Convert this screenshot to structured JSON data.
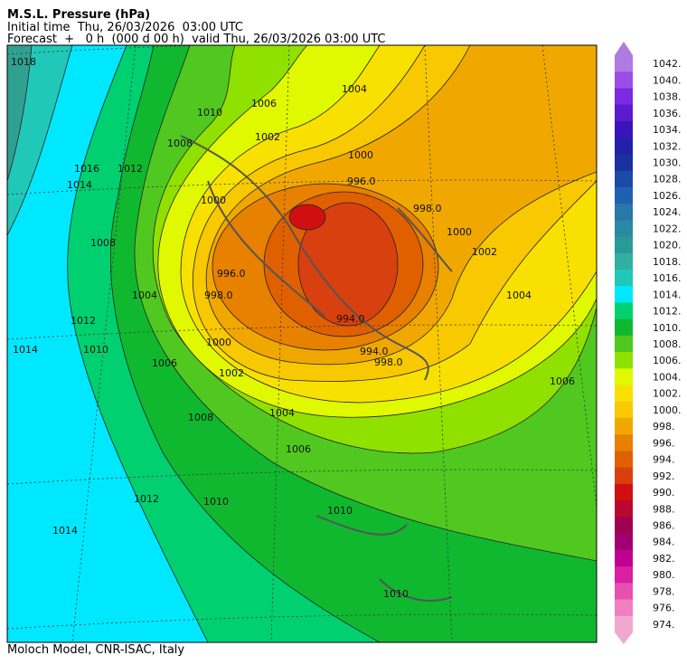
{
  "header": {
    "title": "M.S.L. Pressure (hPa)",
    "initial_time": "Initial time  Thu, 26/03/2026  03:00 UTC",
    "forecast": "Forecast  +   0 h  (000 d 00 h)  valid Thu, 26/03/2026 03:00 UTC"
  },
  "footer": "Moloch Model, CNR-ISAC, Italy",
  "contour_labels": [
    "1018",
    "1016",
    "1014",
    "1012",
    "1010",
    "1008",
    "1006",
    "1004",
    "1002",
    "1000",
    "998.0",
    "996.0",
    "994.0",
    "1014",
    "1012",
    "1010",
    "1008",
    "1006",
    "1004",
    "1002",
    "1000",
    "996.0",
    "998.0",
    "1000",
    "1002",
    "1004",
    "1006",
    "1004",
    "1006",
    "1008",
    "1010",
    "1012",
    "1014",
    "1010",
    "1000",
    "1010",
    "994.0",
    "998.0"
  ],
  "colorbar": [
    {
      "label": "1042.",
      "color": "#b07be0"
    },
    {
      "label": "1040.",
      "color": "#9b4de8"
    },
    {
      "label": "1038.",
      "color": "#7a2ae0"
    },
    {
      "label": "1036.",
      "color": "#5a1ad0"
    },
    {
      "label": "1034.",
      "color": "#3a14b8"
    },
    {
      "label": "1032.",
      "color": "#2020a8"
    },
    {
      "label": "1030.",
      "color": "#1a30a0"
    },
    {
      "label": "1028.",
      "color": "#1c4aa8"
    },
    {
      "label": "1026.",
      "color": "#2060b0"
    },
    {
      "label": "1024.",
      "color": "#2878a8"
    },
    {
      "label": "1022.",
      "color": "#2a8aa0"
    },
    {
      "label": "1020.",
      "color": "#2a9a98"
    },
    {
      "label": "1018.",
      "color": "#30b0a0"
    },
    {
      "label": "1016.",
      "color": "#20c8b8"
    },
    {
      "label": "1014.",
      "color": "#00e8ff"
    },
    {
      "label": "1012.",
      "color": "#00d070"
    },
    {
      "label": "1010.",
      "color": "#10b830"
    },
    {
      "label": "1008.",
      "color": "#50c820"
    },
    {
      "label": "1006.",
      "color": "#90e000"
    },
    {
      "label": "1004.",
      "color": "#e0f800"
    },
    {
      "label": "1002.",
      "color": "#f8e000"
    },
    {
      "label": "1000.",
      "color": "#f8c800"
    },
    {
      "label": "998.",
      "color": "#f0a800"
    },
    {
      "label": "996.",
      "color": "#e88000"
    },
    {
      "label": "994.",
      "color": "#e06000"
    },
    {
      "label": "992.",
      "color": "#d84010"
    },
    {
      "label": "990.",
      "color": "#d01010"
    },
    {
      "label": "988.",
      "color": "#b80830"
    },
    {
      "label": "986.",
      "color": "#a00050"
    },
    {
      "label": "984.",
      "color": "#a00070"
    },
    {
      "label": "982.",
      "color": "#c00090"
    },
    {
      "label": "980.",
      "color": "#d820a0"
    },
    {
      "label": "978.",
      "color": "#e850b0"
    },
    {
      "label": "976.",
      "color": "#f080c0"
    },
    {
      "label": "974.",
      "color": "#f0a8d0"
    }
  ]
}
